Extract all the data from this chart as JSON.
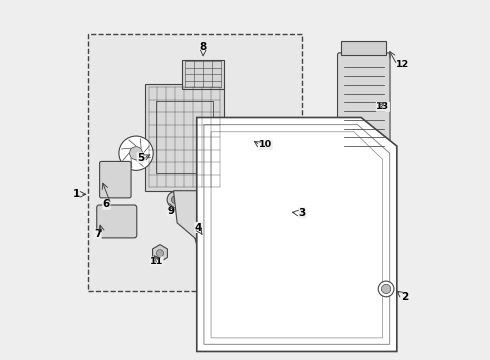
{
  "bg_color": "#eeeeee",
  "white": "#ffffff",
  "black": "#000000",
  "dark_gray": "#444444",
  "light_gray": "#cccccc",
  "medium_gray": "#888888",
  "box_bg": "#e8e8e8"
}
